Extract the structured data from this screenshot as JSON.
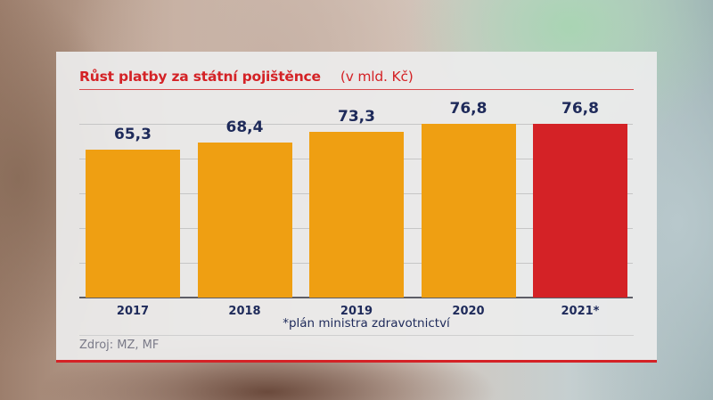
{
  "chart": {
    "title": "Růst platby za státní pojištěnce",
    "unit": "(v mld. Kč)",
    "footnote": "*plán ministra zdravotnictví",
    "source": "Zdroj: MZ, MF",
    "colors": {
      "bar_default": "#ef9f12",
      "bar_highlight": "#d42226",
      "label": "#1e2a5a",
      "title": "#d42226"
    },
    "bars": [
      {
        "category": "2017",
        "value": 65.3,
        "label": "65,3",
        "highlight": false
      },
      {
        "category": "2018",
        "value": 68.4,
        "label": "68,4",
        "highlight": false
      },
      {
        "category": "2019",
        "value": 73.3,
        "label": "73,3",
        "highlight": false
      },
      {
        "category": "2020",
        "value": 76.8,
        "label": "76,8",
        "highlight": false
      },
      {
        "category": "2021*",
        "value": 76.8,
        "label": "76,8",
        "highlight": true
      }
    ]
  },
  "chart_data": {
    "type": "bar",
    "title": "Růst platby za státní pojištěnce (v mld. Kč)",
    "categories": [
      "2017",
      "2018",
      "2019",
      "2020",
      "2021*"
    ],
    "values": [
      65.3,
      68.4,
      73.3,
      76.8,
      76.8
    ],
    "value_labels": [
      "65,3",
      "68,4",
      "73,3",
      "76,8",
      "76,8"
    ],
    "xlabel": "",
    "ylabel": "mld. Kč",
    "ylim": [
      0,
      76.8
    ],
    "grid": true,
    "highlighted_category": "2021*",
    "annotations": [
      "*plán ministra zdravotnictví"
    ],
    "source": "Zdroj: MZ, MF",
    "legend": null
  }
}
